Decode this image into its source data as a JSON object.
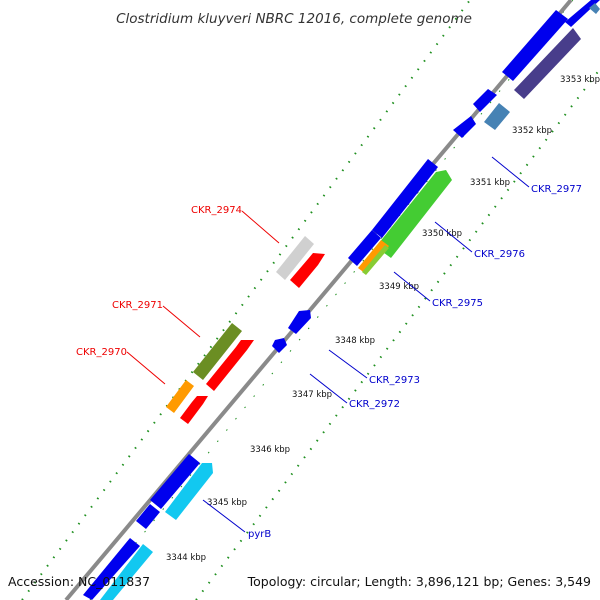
{
  "title": "Clostridium kluyveri NBRC 12016, complete genome",
  "accession": "Accession: NC_011837",
  "summary": "Topology: circular; Length: 3,896,121 bp; Genes: 3,549",
  "colors": {
    "backbone": "#808080",
    "blue": "#0000ee",
    "cyan": "#12c8f0",
    "red": "#ff0000",
    "orange": "#ff9a00",
    "olive": "#6b8e23",
    "grey": "#cfcfcf",
    "green": "#44cc33",
    "steel": "#4682b4",
    "purple": "#483d8b",
    "tick_dots": "#1e8f1e",
    "label_red": "#ee0000",
    "label_blue": "#0000cc"
  },
  "ticks": [
    "3344 kbp",
    "3345 kbp",
    "3346 kbp",
    "3347 kbp",
    "3348 kbp",
    "3349 kbp",
    "3350 kbp",
    "3351 kbp",
    "3352 kbp",
    "3353 kbp"
  ],
  "gene_labels": [
    "CKR_2970",
    "CKR_2971",
    "CKR_2974",
    "pyrB",
    "CKR_2972",
    "CKR_2973",
    "CKR_2975",
    "CKR_2976",
    "CKR_2977"
  ]
}
